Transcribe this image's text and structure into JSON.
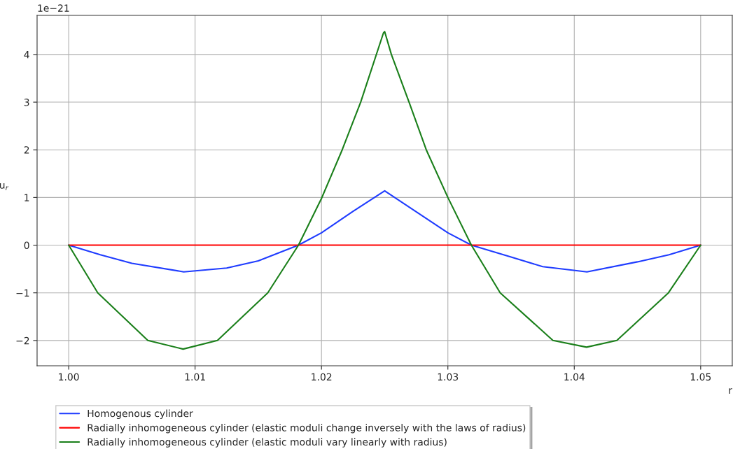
{
  "chart_data": {
    "type": "line",
    "xlabel": "r",
    "ylabel": "u$_{r}$",
    "annotations": [
      "1e−21"
    ],
    "xlim": [
      0.9975,
      1.0525
    ],
    "xticks": [
      {
        "value": 1.0,
        "label": "1.00"
      },
      {
        "value": 1.01,
        "label": "1.01"
      },
      {
        "value": 1.02,
        "label": "1.02"
      },
      {
        "value": 1.03,
        "label": "1.03"
      },
      {
        "value": 1.04,
        "label": "1.04"
      },
      {
        "value": 1.05,
        "label": "1.05"
      }
    ],
    "ylim": [
      -2.53,
      4.82
    ],
    "yticks": [
      {
        "value": -2,
        "label": "−2"
      },
      {
        "value": -1,
        "label": "−1"
      },
      0,
      1,
      2,
      3,
      4
    ],
    "grid": true,
    "legend": "bottom left",
    "line_style": "solid",
    "marker": "none",
    "series": [
      {
        "name": "Homogenous cylinder",
        "color": "#1f3cff",
        "x": [
          1.0,
          1.0025,
          1.005,
          1.0091,
          1.0125,
          1.015,
          1.01818,
          1.02,
          1.0225,
          1.025,
          1.0275,
          1.03,
          1.03186,
          1.035,
          1.0375,
          1.041,
          1.045,
          1.0475,
          1.05
        ],
        "values": [
          0,
          -0.2,
          -0.38,
          -0.56,
          -0.48,
          -0.33,
          0,
          0.26,
          0.71,
          1.14,
          0.7,
          0.26,
          0,
          -0.25,
          -0.45,
          -0.56,
          -0.35,
          -0.2,
          0
        ]
      },
      {
        "name": "Radially inhomogeneous cylinder (elastic moduli change inversely with the laws of radius)",
        "color": "#ff0000",
        "x": [
          1.0,
          1.05
        ],
        "values": [
          0,
          0
        ]
      },
      {
        "name": "Radially inhomogeneous cylinder (elastic moduli vary linearly with radius)",
        "color": "#1a7f1a",
        "x": [
          1.0,
          1.0023,
          1.00626,
          1.00905,
          1.01177,
          1.01575,
          1.01818,
          1.02,
          1.02164,
          1.0231,
          1.0249,
          1.025,
          1.02553,
          1.02693,
          1.02829,
          1.03,
          1.03186,
          1.03414,
          1.03831,
          1.04097,
          1.04337,
          1.04745,
          1.05
        ],
        "values": [
          0,
          -1,
          -2,
          -2.18,
          -2,
          -1,
          0,
          0.98,
          2,
          3,
          4.45,
          4.48,
          4,
          3,
          2,
          1,
          0,
          -1,
          -2,
          -2.14,
          -2,
          -1,
          0
        ]
      }
    ]
  }
}
